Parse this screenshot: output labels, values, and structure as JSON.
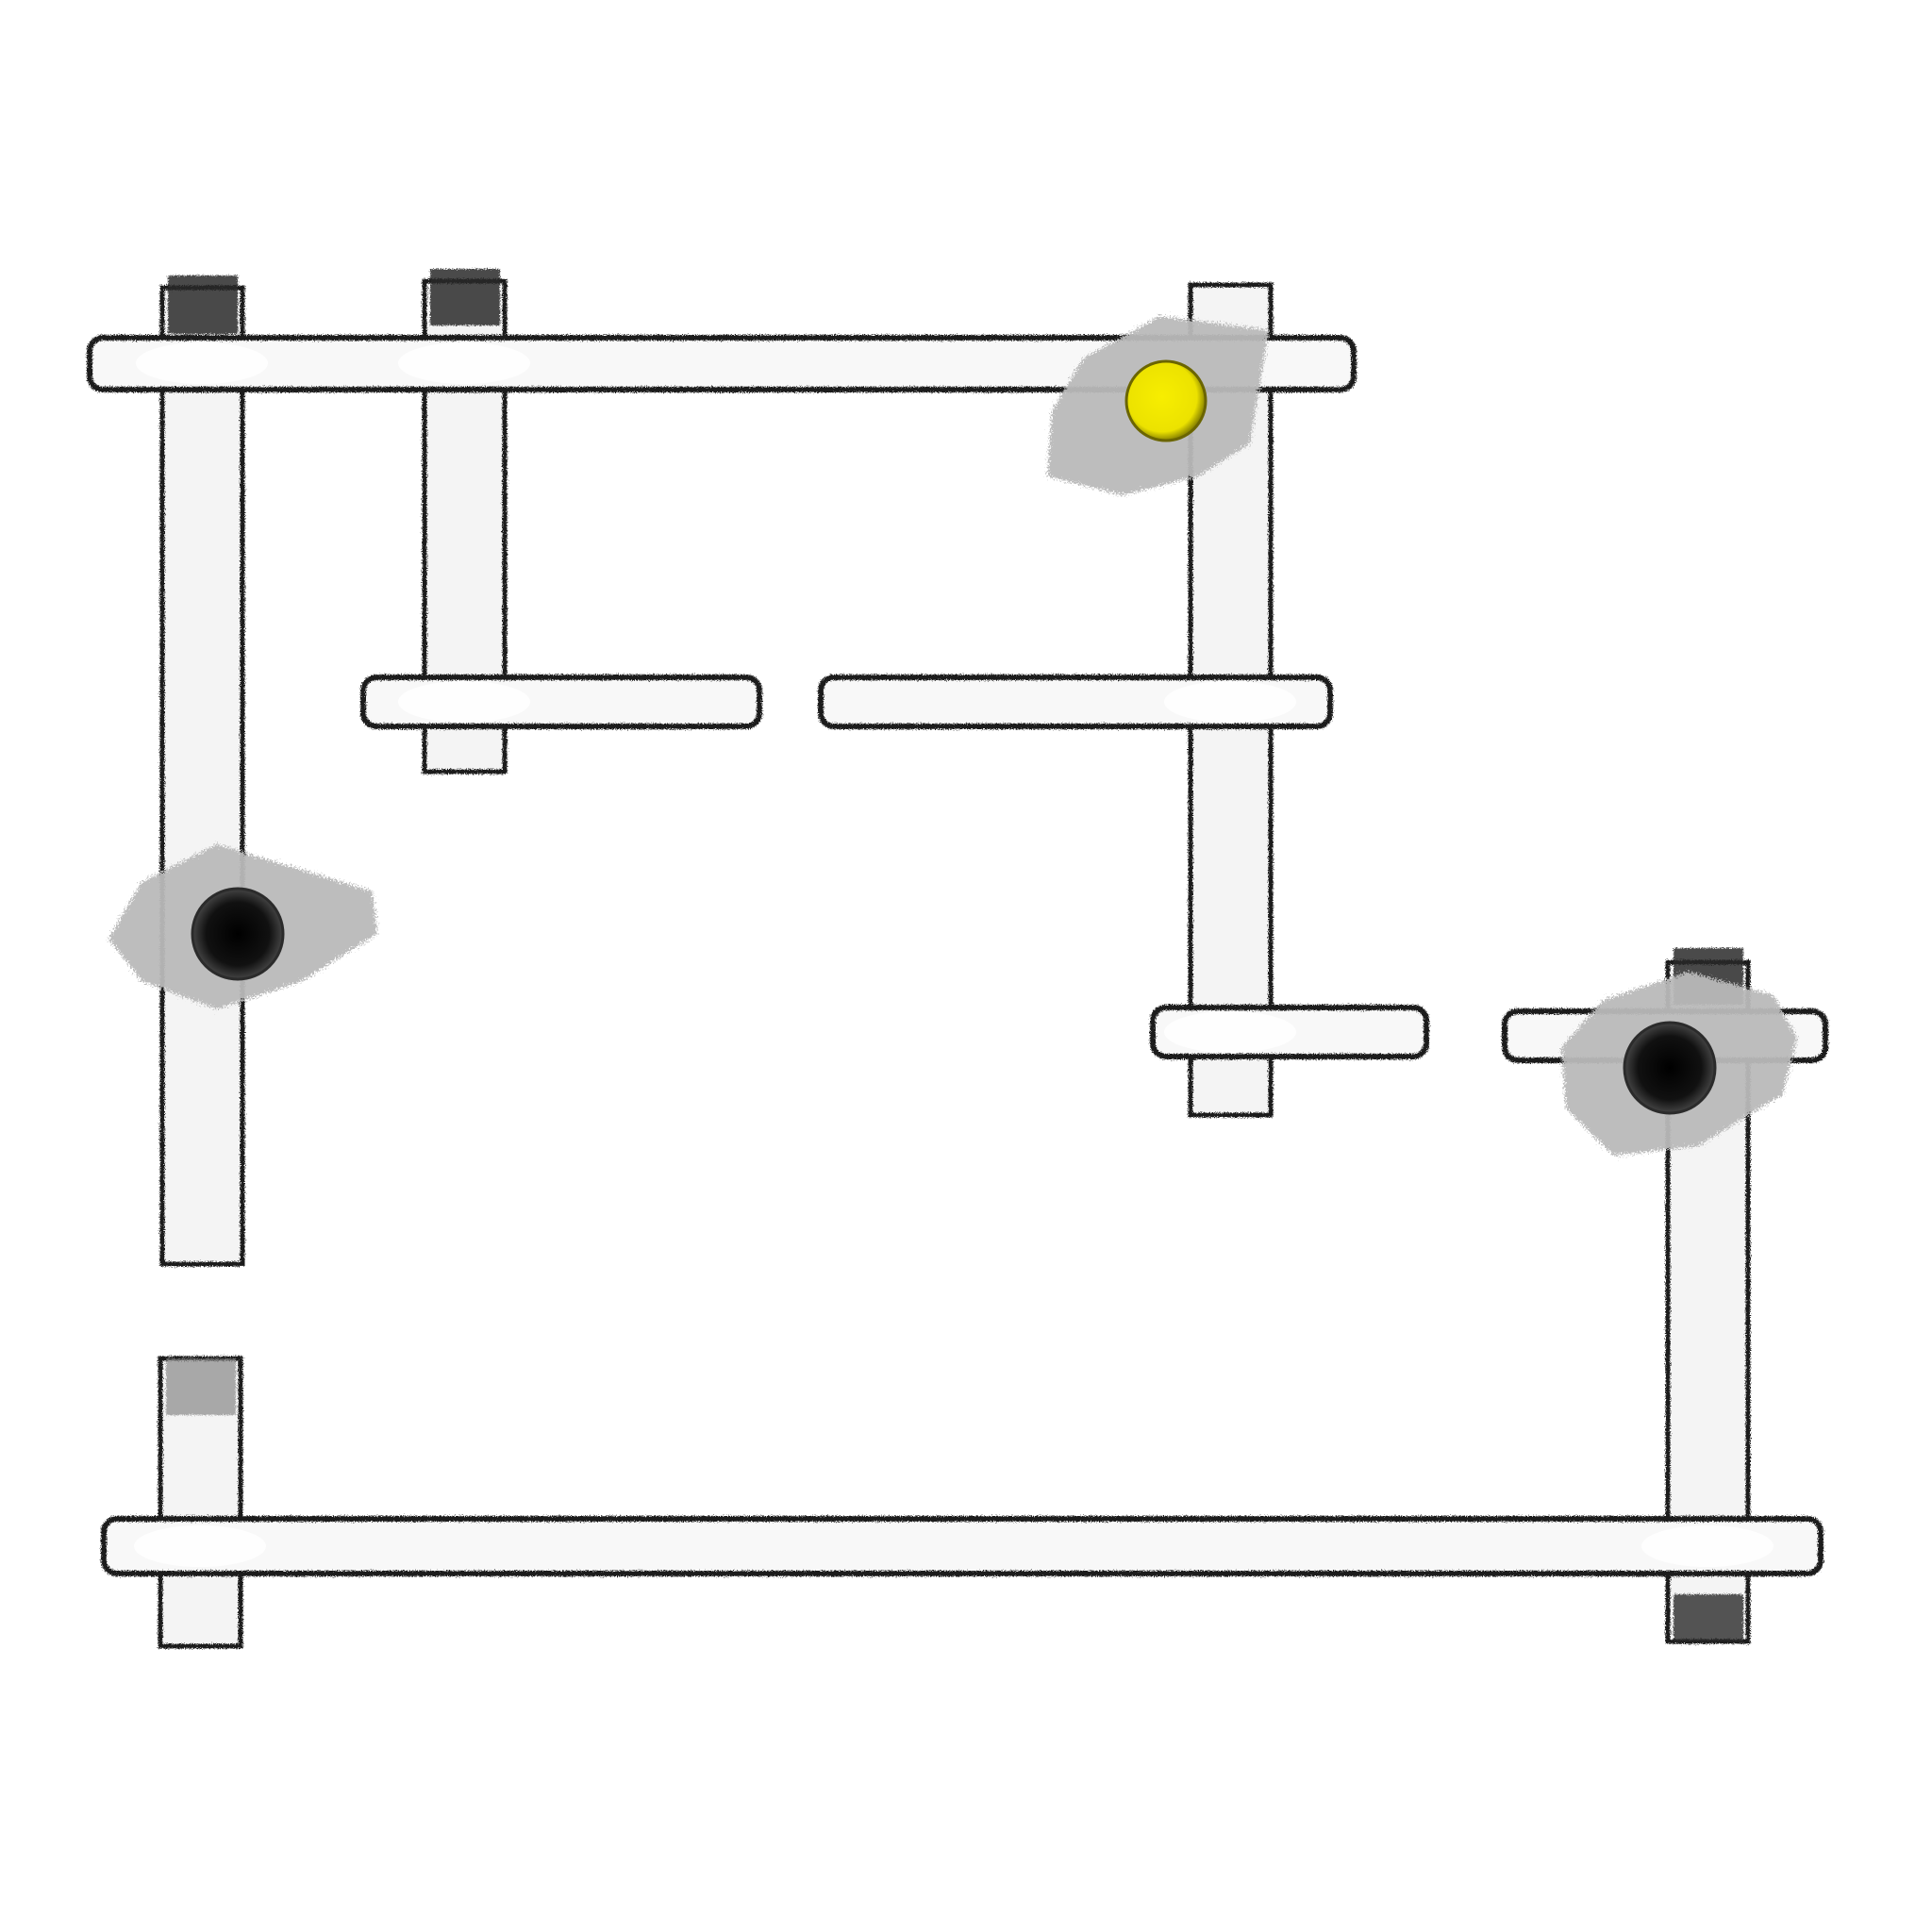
{
  "diagram": {
    "background": "#ffffff",
    "stroke_color": "#1a1a1a",
    "bar_fill": "#f4f4f4",
    "patch_fill": "#b9b9b9",
    "nodes": [
      {
        "id": "node-top-right",
        "fill": "#f2e800",
        "state": "active"
      },
      {
        "id": "node-left",
        "fill": "#111111",
        "state": "inactive"
      },
      {
        "id": "node-right",
        "fill": "#111111",
        "state": "inactive"
      }
    ]
  }
}
